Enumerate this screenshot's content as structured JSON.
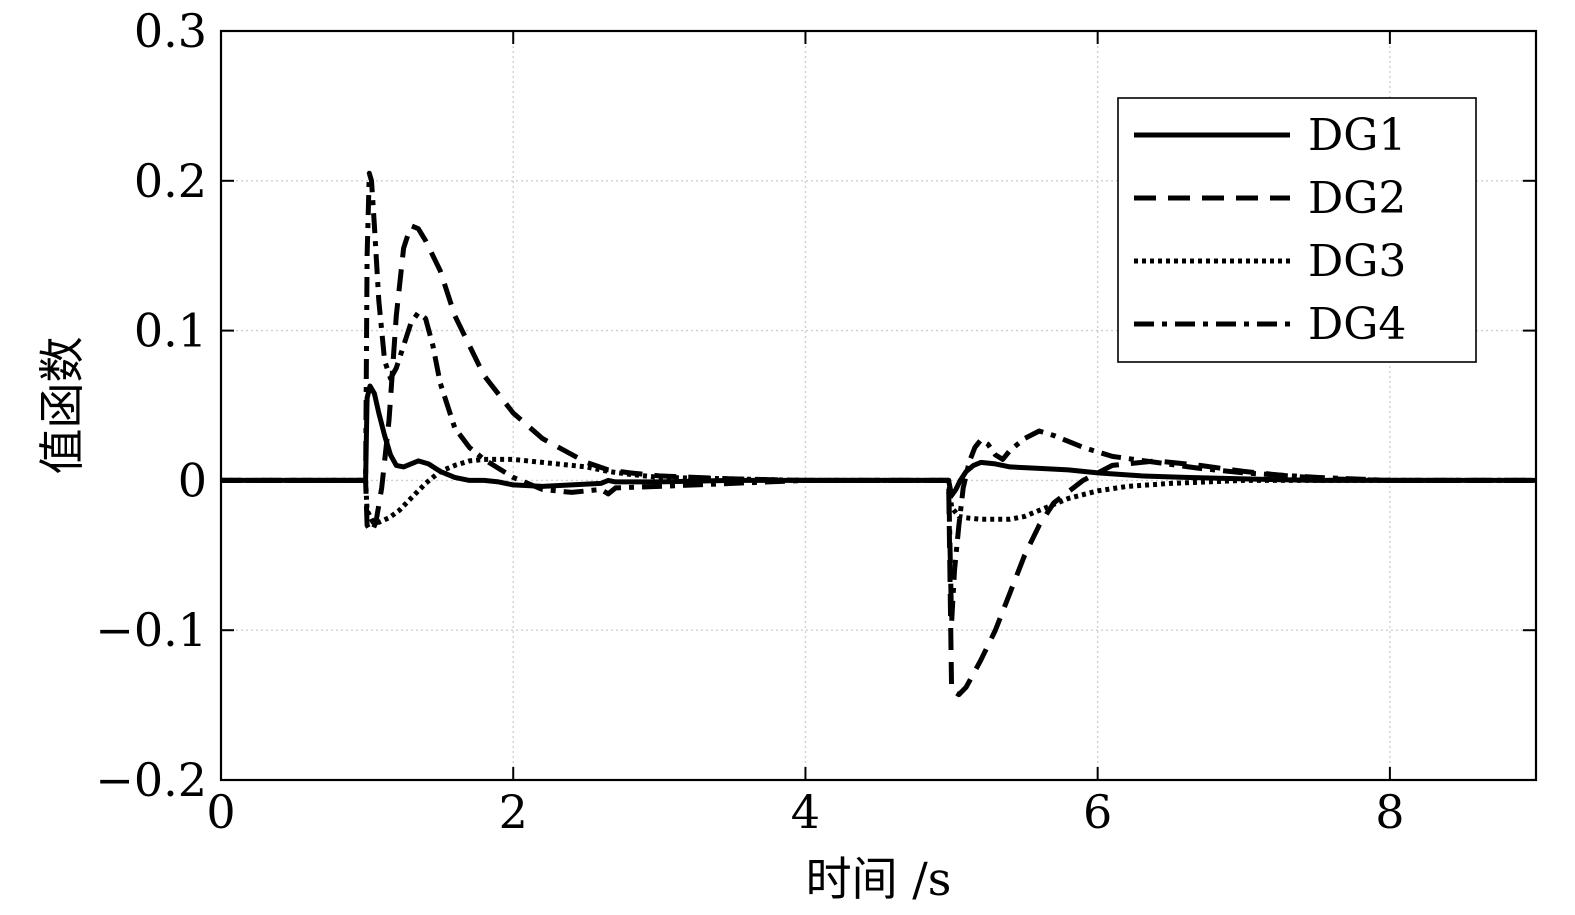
{
  "chart_data": {
    "type": "line",
    "xlabel": "时间 /s",
    "ylabel": "值函数",
    "xlim": [
      0,
      9
    ],
    "ylim": [
      -0.2,
      0.3
    ],
    "xticks": [
      0,
      2,
      4,
      6,
      8
    ],
    "yticks": [
      -0.2,
      -0.1,
      0,
      0.1,
      0.2,
      0.3
    ],
    "xtick_labels": [
      "0",
      "2",
      "4",
      "6",
      "8"
    ],
    "ytick_labels": [
      "−0.2",
      "−0.1",
      "0",
      "0.1",
      "0.2",
      "0.3"
    ],
    "grid": true,
    "legend_position": "top-right",
    "series": [
      {
        "name": "DG1",
        "style": "solid",
        "x": [
          0,
          0.99,
          1.0,
          1.02,
          1.05,
          1.08,
          1.12,
          1.16,
          1.2,
          1.25,
          1.3,
          1.35,
          1.42,
          1.5,
          1.6,
          1.7,
          1.8,
          1.9,
          2.0,
          2.2,
          2.4,
          2.6,
          2.65,
          2.7,
          3.0,
          3.5,
          4.0,
          4.98,
          5.0,
          5.03,
          5.06,
          5.1,
          5.15,
          5.2,
          5.3,
          5.4,
          5.6,
          5.8,
          6.0,
          6.3,
          6.6,
          7.0,
          7.5,
          8.0,
          9.0
        ],
        "y": [
          0,
          0,
          0.055,
          0.063,
          0.058,
          0.045,
          0.03,
          0.017,
          0.01,
          0.009,
          0.011,
          0.013,
          0.011,
          0.006,
          0.002,
          0.0,
          0.0,
          -0.001,
          -0.003,
          -0.004,
          -0.003,
          -0.002,
          0.0,
          -0.001,
          -0.001,
          0.0,
          0.0,
          0.0,
          -0.01,
          -0.006,
          0.0,
          0.006,
          0.01,
          0.012,
          0.011,
          0.009,
          0.008,
          0.007,
          0.005,
          0.003,
          0.002,
          0.001,
          0.0,
          0.0,
          0.0
        ]
      },
      {
        "name": "DG2",
        "style": "dashed",
        "x": [
          0,
          0.99,
          1.0,
          1.03,
          1.06,
          1.1,
          1.15,
          1.2,
          1.25,
          1.3,
          1.35,
          1.4,
          1.5,
          1.6,
          1.8,
          2.0,
          2.2,
          2.5,
          2.65,
          2.8,
          3.0,
          3.5,
          4.0,
          4.98,
          5.0,
          5.05,
          5.1,
          5.2,
          5.3,
          5.4,
          5.5,
          5.6,
          5.7,
          5.9,
          6.1,
          6.4,
          6.7,
          7.0,
          7.3,
          7.6,
          8.0,
          9.0
        ],
        "y": [
          0,
          0,
          -0.03,
          -0.035,
          -0.028,
          -0.005,
          0.04,
          0.11,
          0.155,
          0.17,
          0.168,
          0.16,
          0.14,
          0.11,
          0.07,
          0.045,
          0.028,
          0.012,
          0.007,
          0.005,
          0.003,
          0.001,
          0.0,
          0.0,
          -0.14,
          -0.143,
          -0.138,
          -0.12,
          -0.1,
          -0.075,
          -0.05,
          -0.03,
          -0.015,
          0.0,
          0.01,
          0.013,
          0.01,
          0.006,
          0.003,
          0.001,
          0.0,
          0.0
        ]
      },
      {
        "name": "DG3",
        "style": "dotted",
        "x": [
          0,
          0.99,
          1.0,
          1.04,
          1.08,
          1.15,
          1.22,
          1.3,
          1.4,
          1.5,
          1.6,
          1.7,
          1.8,
          2.0,
          2.2,
          2.5,
          2.65,
          2.8,
          3.0,
          3.5,
          4.0,
          4.98,
          5.0,
          5.05,
          5.1,
          5.2,
          5.3,
          5.4,
          5.5,
          5.6,
          5.8,
          6.0,
          6.2,
          6.5,
          7.0,
          7.5,
          8.0,
          9.0
        ],
        "y": [
          0,
          0,
          -0.02,
          -0.028,
          -0.028,
          -0.025,
          -0.02,
          -0.012,
          -0.002,
          0.006,
          0.01,
          0.013,
          0.014,
          0.014,
          0.012,
          0.009,
          0.006,
          0.004,
          0.002,
          0.001,
          0.0,
          0.0,
          -0.018,
          -0.024,
          -0.025,
          -0.026,
          -0.026,
          -0.026,
          -0.024,
          -0.02,
          -0.012,
          -0.007,
          -0.004,
          -0.002,
          0.0,
          0.0,
          0.0,
          0.0
        ]
      },
      {
        "name": "DG4",
        "style": "dashdot",
        "x": [
          0,
          0.99,
          1.0,
          1.015,
          1.03,
          1.05,
          1.08,
          1.12,
          1.16,
          1.2,
          1.25,
          1.3,
          1.35,
          1.4,
          1.45,
          1.5,
          1.6,
          1.7,
          1.8,
          2.0,
          2.2,
          2.4,
          2.6,
          2.65,
          2.7,
          3.0,
          3.5,
          4.0,
          4.98,
          5.0,
          5.02,
          5.05,
          5.08,
          5.12,
          5.16,
          5.2,
          5.25,
          5.3,
          5.35,
          5.4,
          5.5,
          5.6,
          5.7,
          5.9,
          6.1,
          6.4,
          6.7,
          7.0,
          7.5,
          8.0,
          9.0
        ],
        "y": [
          0,
          0,
          0.15,
          0.205,
          0.2,
          0.17,
          0.12,
          0.08,
          0.068,
          0.075,
          0.09,
          0.105,
          0.112,
          0.108,
          0.09,
          0.065,
          0.035,
          0.022,
          0.014,
          0.002,
          -0.006,
          -0.008,
          -0.006,
          -0.009,
          -0.005,
          -0.004,
          -0.002,
          0.0,
          0.0,
          -0.095,
          -0.06,
          -0.03,
          -0.005,
          0.012,
          0.022,
          0.027,
          0.024,
          0.017,
          0.014,
          0.02,
          0.028,
          0.033,
          0.03,
          0.022,
          0.016,
          0.012,
          0.008,
          0.005,
          0.002,
          0.0,
          0.0
        ]
      }
    ]
  }
}
